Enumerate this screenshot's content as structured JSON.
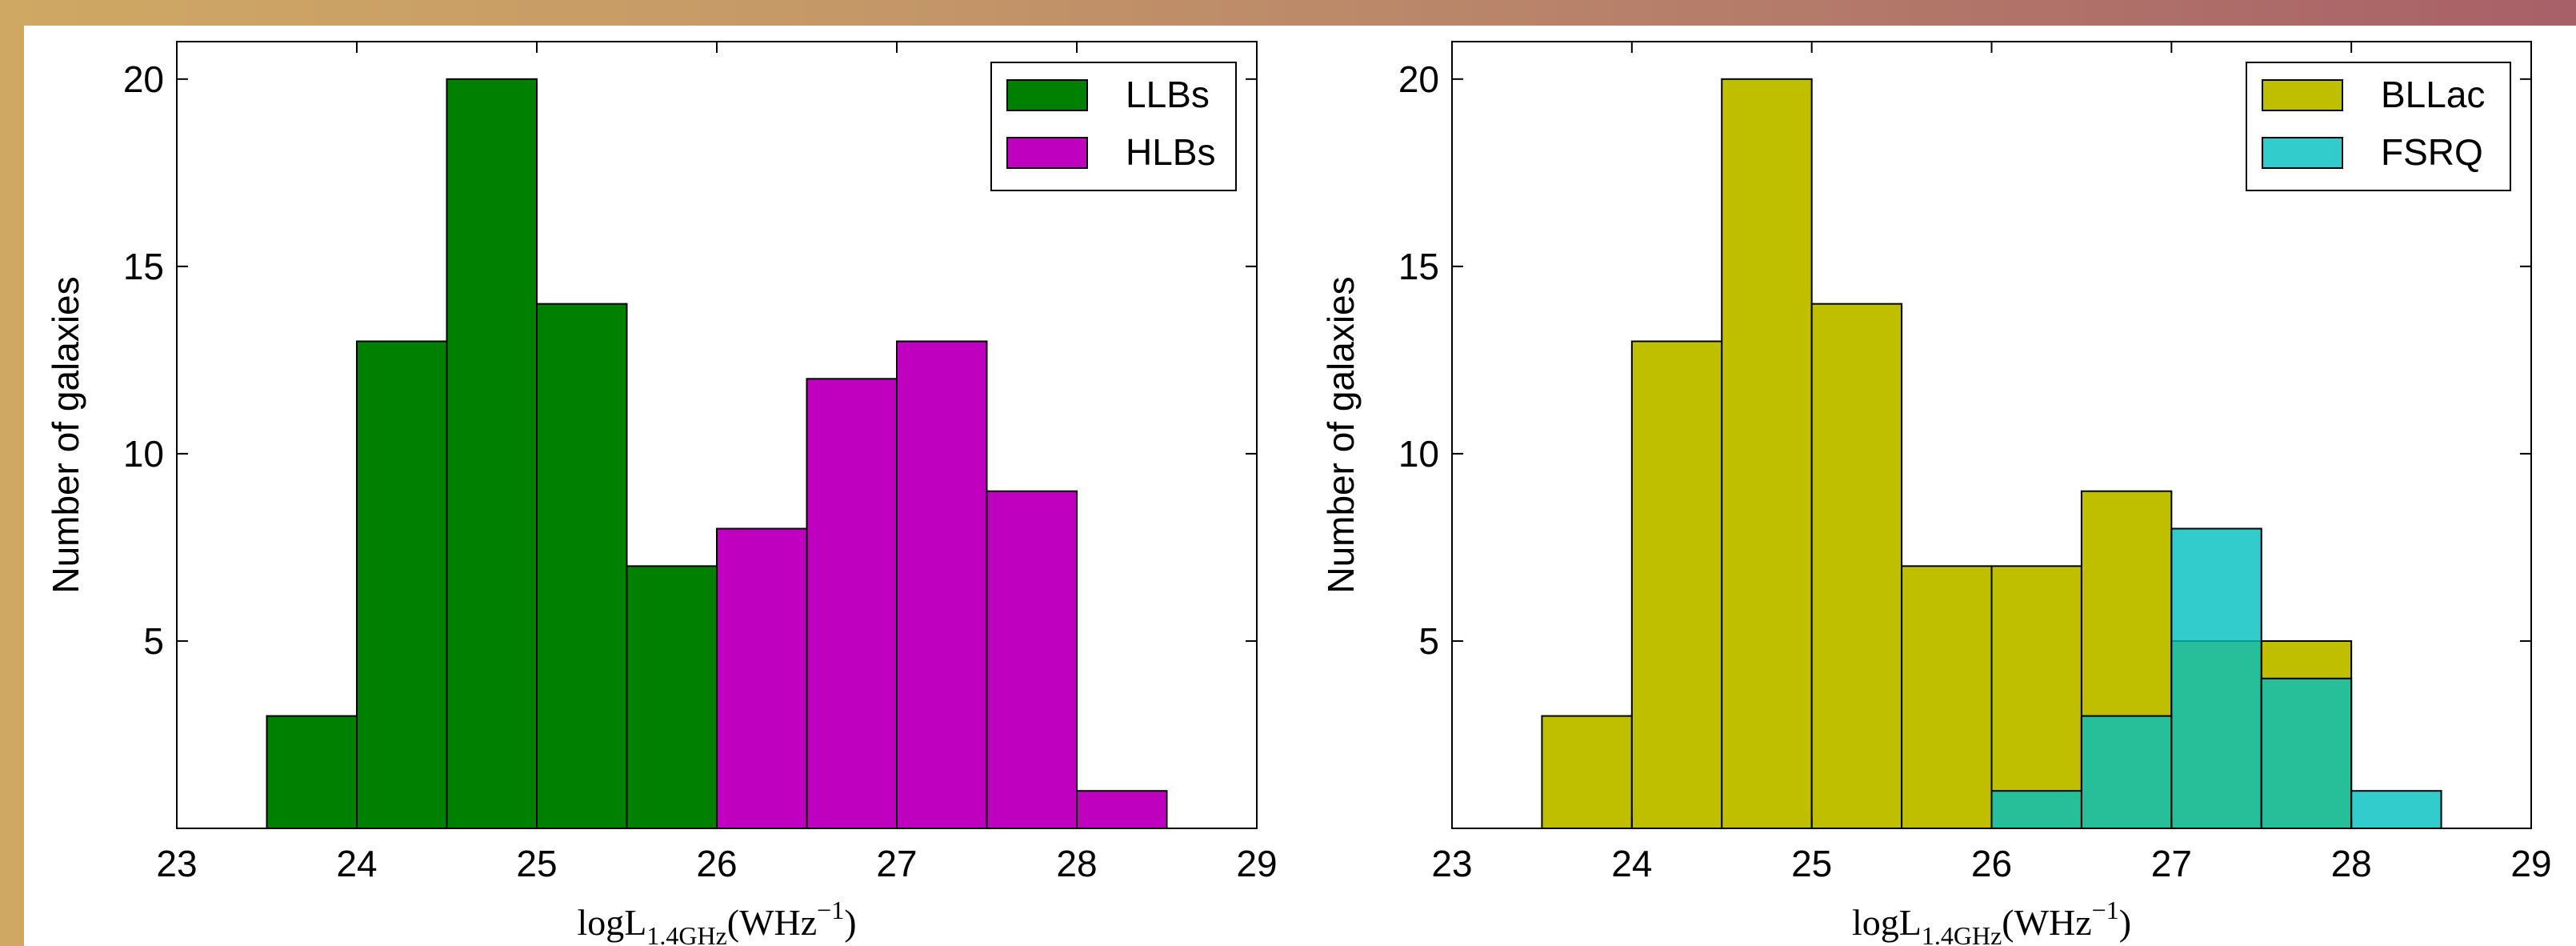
{
  "chart_data": [
    {
      "type": "bar",
      "title": "",
      "xlabel": "logL1.4GHz(WHz−1)",
      "ylabel": "Number of galaxies",
      "xlim": [
        23,
        29
      ],
      "ylim": [
        0,
        21
      ],
      "xticks": [
        "23",
        "24",
        "25",
        "26",
        "27",
        "28",
        "29"
      ],
      "yticks": [
        "5",
        "10",
        "15",
        "20"
      ],
      "bin_edges": [
        23.5,
        24,
        24.5,
        25,
        25.5,
        26,
        26.5,
        27,
        27.5,
        28,
        28.5
      ],
      "legend_position": "top-right",
      "series": [
        {
          "name": "LLBs",
          "color": "#008000",
          "values": [
            3,
            13,
            20,
            14,
            7,
            0,
            0,
            0,
            0,
            0
          ]
        },
        {
          "name": "HLBs",
          "color": "#bf00bf",
          "values": [
            0,
            0,
            0,
            0,
            0,
            8,
            12,
            13,
            9,
            1
          ]
        }
      ]
    },
    {
      "type": "bar",
      "title": "",
      "xlabel": "logL1.4GHz(WHz−1)",
      "ylabel": "Number of galaxies",
      "xlim": [
        23,
        29
      ],
      "ylim": [
        0,
        21
      ],
      "xticks": [
        "23",
        "24",
        "25",
        "26",
        "27",
        "28",
        "29"
      ],
      "yticks": [
        "5",
        "10",
        "15",
        "20"
      ],
      "bin_edges": [
        23.5,
        24,
        24.5,
        25,
        25.5,
        26,
        26.5,
        27,
        27.5,
        28,
        28.5
      ],
      "legend_position": "top-right",
      "series": [
        {
          "name": "BLLac",
          "color": "#bfbf00",
          "values": [
            3,
            13,
            20,
            14,
            7,
            7,
            9,
            5,
            5,
            0
          ]
        },
        {
          "name": "FSRQ",
          "color": "#00bfbf",
          "alpha": 0.8,
          "values": [
            0,
            0,
            0,
            0,
            0,
            1,
            3,
            8,
            4,
            1
          ]
        }
      ]
    }
  ]
}
